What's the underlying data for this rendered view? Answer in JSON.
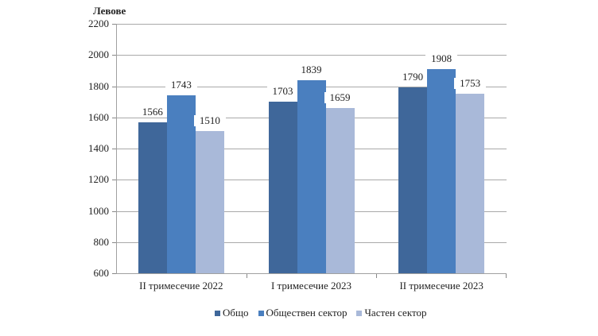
{
  "chart_data": {
    "type": "bar",
    "title": "",
    "ylabel": "Левове",
    "xlabel": "",
    "ylim": [
      600,
      2200
    ],
    "yticks": [
      600,
      800,
      1000,
      1200,
      1400,
      1600,
      1800,
      2000,
      2200
    ],
    "grid": true,
    "legend_position": "bottom",
    "categories": [
      "II тримесечие 2022",
      "I тримесечие 2023",
      "II тримесечие 2023"
    ],
    "series": [
      {
        "name": "Общо",
        "color": "#3f679a",
        "values": [
          1566,
          1703,
          1790
        ]
      },
      {
        "name": "Обществен сектор",
        "color": "#4a7fbf",
        "values": [
          1743,
          1839,
          1908
        ]
      },
      {
        "name": "Частен сектор",
        "color": "#a9b9d9",
        "values": [
          1510,
          1659,
          1753
        ]
      }
    ]
  },
  "labels": {
    "y_title": "Левове",
    "yticks": [
      "600",
      "800",
      "1000",
      "1200",
      "1400",
      "1600",
      "1800",
      "2000",
      "2200"
    ],
    "categories": [
      "II тримесечие 2022",
      "I тримесечие 2023",
      "II тримесечие 2023"
    ],
    "legend": [
      "Общо",
      "Обществен сектор",
      "Частен сектор"
    ],
    "values": [
      [
        "1566",
        "1743",
        "1510"
      ],
      [
        "1703",
        "1839",
        "1659"
      ],
      [
        "1790",
        "1908",
        "1753"
      ]
    ]
  }
}
